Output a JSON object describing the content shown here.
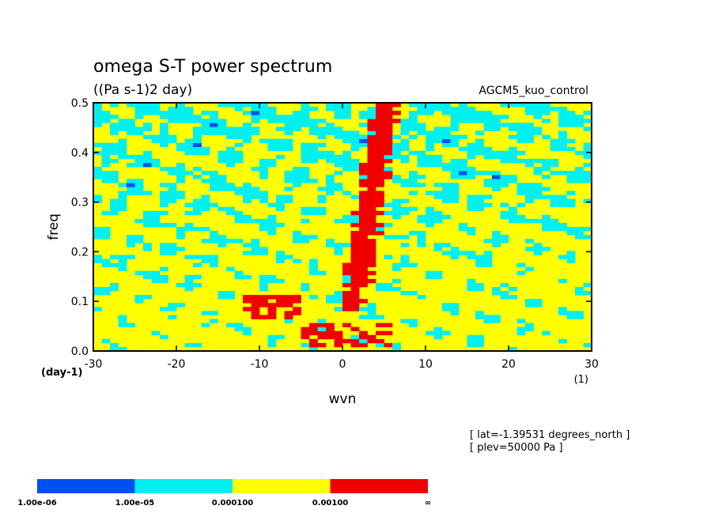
{
  "chart_data": {
    "type": "heatmap",
    "title": "omega S-T power spectrum",
    "units": "((Pa s-1)2 day)",
    "dataset": "AGCM5_kuo_control",
    "xlabel": "wvn",
    "ylabel": "freq",
    "x_unit": "(1)",
    "y_unit": "(day-1)",
    "xlim": [
      -30,
      30
    ],
    "ylim": [
      0,
      0.5
    ],
    "x_ticks": [
      "-30",
      "-20",
      "-10",
      "0",
      "10",
      "20",
      "30"
    ],
    "y_ticks": [
      "0.0",
      "0.1",
      "0.2",
      "0.3",
      "0.4",
      "0.5"
    ],
    "annotations": [
      "[ lat=-1.39531 degrees_north ]",
      "[ plev=50000 Pa ]"
    ],
    "color_levels": {
      "boundaries": [
        "1.00e-06",
        "1.00e-05",
        "0.000100",
        "0.00100",
        "∞"
      ],
      "colors": [
        "#0050f0",
        "#00f0f0",
        "#ffff00",
        "#f00000"
      ],
      "below_min_color": "#ffffff"
    },
    "regions": [
      {
        "level": "0.00100-∞",
        "description": "narrow band of high power along positive wavenumbers",
        "points": [
          [
            5,
            0.5
          ],
          [
            4,
            0.4
          ],
          [
            3,
            0.3
          ],
          [
            2,
            0.2
          ],
          [
            1,
            0.1
          ],
          [
            0,
            0.02
          ]
        ]
      },
      {
        "level": "0.00100-∞",
        "description": "patches at low frequency, negative wavenumbers",
        "points": [
          [
            -10,
            0.1
          ],
          [
            -7,
            0.05
          ],
          [
            -4,
            0.03
          ]
        ]
      }
    ],
    "grid": false
  }
}
